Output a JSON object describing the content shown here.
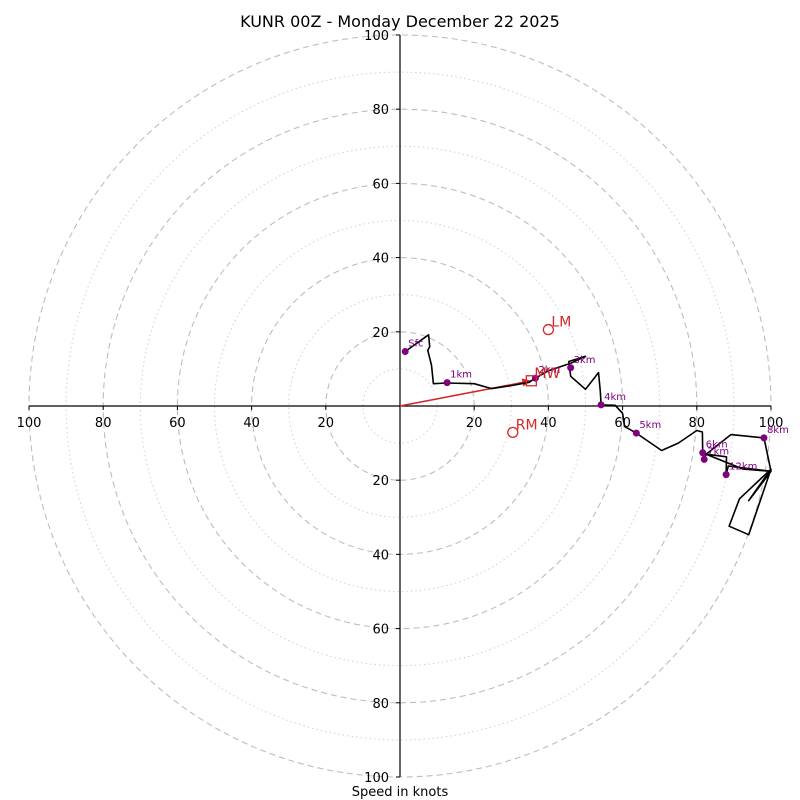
{
  "title": "KUNR 00Z - Monday December 22 2025",
  "chart_data": {
    "type": "hodograph",
    "title": "KUNR 00Z - Monday December 22 2025",
    "xlabel": "Speed in knots",
    "ylabel": "",
    "xlim": [
      -100,
      100
    ],
    "ylim": [
      -100,
      100
    ],
    "grid": true,
    "x_ticks": [
      -100,
      -80,
      -60,
      -40,
      -20,
      20,
      40,
      60,
      80,
      100
    ],
    "x_tick_labels": [
      "100",
      "80",
      "60",
      "40",
      "20",
      "20",
      "40",
      "60",
      "80",
      "100"
    ],
    "y_ticks": [
      100,
      80,
      60,
      40,
      20,
      -20,
      -40,
      -60,
      -80,
      -100
    ],
    "y_tick_labels": [
      "100",
      "80",
      "60",
      "40",
      "20",
      "20",
      "40",
      "60",
      "80",
      "100"
    ],
    "rings_major": [
      20,
      40,
      60,
      80,
      100
    ],
    "rings_minor": [
      10,
      30,
      50,
      70,
      90
    ],
    "colors": {
      "trace": "#000000",
      "height_marker": "#800080",
      "motion": "#d62728",
      "grid": "#bdbdbd",
      "axis": "#000000"
    },
    "trace": [
      [
        1.4,
        14.7
      ],
      [
        7.7,
        19.2
      ],
      [
        8,
        16
      ],
      [
        7.5,
        15
      ],
      [
        8.5,
        11
      ],
      [
        9,
        6
      ],
      [
        12.5,
        6.2
      ],
      [
        20,
        6
      ],
      [
        24.7,
        4.7
      ],
      [
        30,
        5.5
      ],
      [
        34.8,
        6.4
      ],
      [
        36.5,
        7.5
      ],
      [
        40,
        9.5
      ],
      [
        43,
        10.5
      ],
      [
        46,
        11.5
      ],
      [
        50,
        13.4
      ],
      [
        45.5,
        12
      ],
      [
        46,
        8
      ],
      [
        50,
        4.5
      ],
      [
        53.5,
        9
      ],
      [
        54,
        4
      ],
      [
        54.2,
        0.3
      ],
      [
        58,
        0.2
      ],
      [
        60,
        -2
      ],
      [
        60.5,
        -5.5
      ],
      [
        63.7,
        -7.3
      ],
      [
        70.5,
        -12
      ],
      [
        75,
        -10
      ],
      [
        80,
        -6.6
      ],
      [
        81.5,
        -7
      ],
      [
        81.6,
        -12.6
      ],
      [
        81.8,
        -13.5
      ],
      [
        82,
        -14.4
      ],
      [
        82.5,
        -13
      ],
      [
        88,
        -13.7
      ],
      [
        87.9,
        -18.5
      ],
      [
        88.5,
        -16.2
      ],
      [
        100,
        -17.6
      ],
      [
        98.1,
        -8.6
      ],
      [
        89.2,
        -7.7
      ],
      [
        82.5,
        -13
      ],
      [
        92.5,
        -17
      ],
      [
        100,
        -17.6
      ],
      [
        94,
        -25.5
      ],
      [
        100,
        -17
      ],
      [
        94,
        -34.7
      ],
      [
        88.7,
        -32.4
      ],
      [
        91.5,
        -25
      ],
      [
        100,
        -17
      ]
    ],
    "height_markers": [
      {
        "label": "Sfc",
        "u": 1.4,
        "v": 14.7
      },
      {
        "label": "1km",
        "u": 12.7,
        "v": 6.3
      },
      {
        "label": "2km",
        "u": 36.5,
        "v": 7.5
      },
      {
        "label": "3km",
        "u": 46.0,
        "v": 10.3
      },
      {
        "label": "4km",
        "u": 54.2,
        "v": 0.3
      },
      {
        "label": "5km",
        "u": 63.7,
        "v": -7.3
      },
      {
        "label": "6km",
        "u": 81.6,
        "v": -12.6
      },
      {
        "label": "7km",
        "u": 82.0,
        "v": -14.4
      },
      {
        "label": "8km",
        "u": 98.1,
        "v": -8.6
      },
      {
        "label": "12km",
        "u": 87.9,
        "v": -18.5
      }
    ],
    "motion_markers": [
      {
        "label": "LM",
        "u": 40.0,
        "v": 20.6,
        "shape": "circle"
      },
      {
        "label": "RM",
        "u": 30.4,
        "v": -7.1,
        "shape": "circle"
      },
      {
        "label": "MW",
        "u": 35.4,
        "v": 6.8,
        "shape": "square"
      }
    ],
    "motion_vector": {
      "from": [
        0,
        0
      ],
      "to": [
        35.4,
        6.8
      ]
    }
  }
}
